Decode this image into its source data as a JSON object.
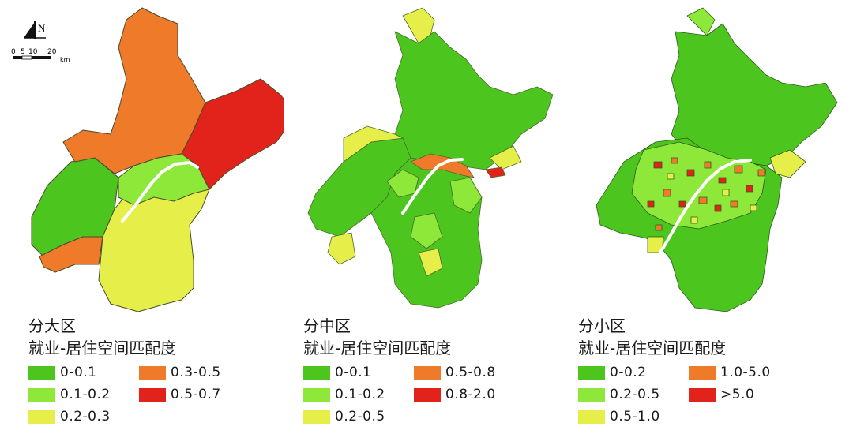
{
  "north_label": "N",
  "scale_ticks": [
    "0",
    "5",
    "10",
    "20"
  ],
  "scale_unit": "km",
  "colors": {
    "class1": "#4cc51f",
    "class2": "#8ee83a",
    "class3": "#e6ef4a",
    "class4": "#ee7a2a",
    "class5": "#e2231b",
    "river": "#ffffff",
    "outline": "#3b5c2a"
  },
  "panels": [
    {
      "title": "分大区",
      "subtitle": "就业-居住空间匹配度",
      "legend": [
        "0-0.1",
        "0.1-0.2",
        "0.2-0.3",
        "0.3-0.5",
        "0.5-0.7"
      ]
    },
    {
      "title": "分中区",
      "subtitle": "就业-居住空间匹配度",
      "legend": [
        "0-0.1",
        "0.1-0.2",
        "0.2-0.5",
        "0.5-0.8",
        "0.8-2.0"
      ]
    },
    {
      "title": "分小区",
      "subtitle": "就业-居住空间匹配度",
      "legend": [
        "0-0.2",
        "0.2-0.5",
        "0.5-1.0",
        "1.0-5.0",
        ">5.0"
      ]
    }
  ]
}
